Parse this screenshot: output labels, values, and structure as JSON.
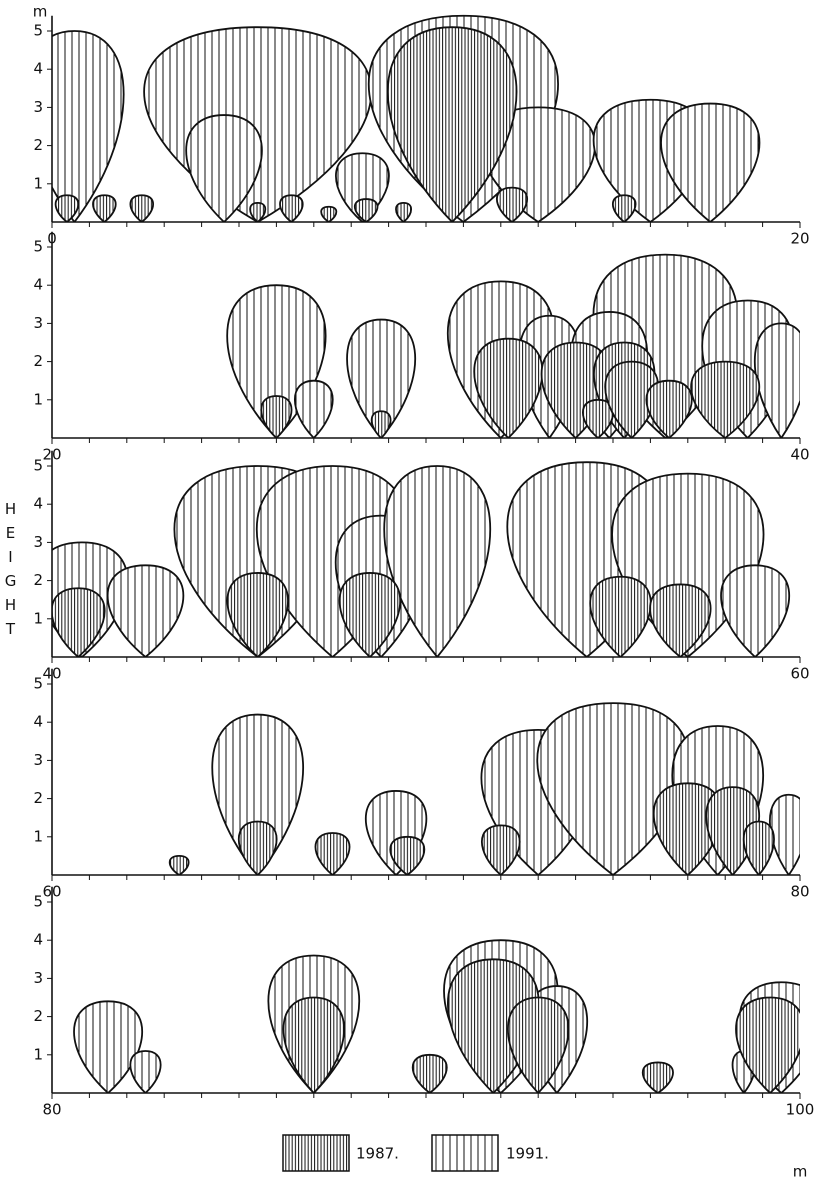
{
  "y_unit": "m",
  "x_unit": "m",
  "y_axis_title": "HEIGHT",
  "panels": [
    {
      "xlim": [
        0,
        20
      ],
      "yticks": [
        1,
        2,
        3,
        4,
        5
      ]
    },
    {
      "xlim": [
        20,
        40
      ],
      "yticks": [
        1,
        2,
        3,
        4,
        5
      ]
    },
    {
      "xlim": [
        40,
        60
      ],
      "yticks": [
        1,
        2,
        3,
        4,
        5
      ]
    },
    {
      "xlim": [
        60,
        80
      ],
      "yticks": [
        1,
        2,
        3,
        4,
        5
      ]
    },
    {
      "xlim": [
        80,
        100
      ],
      "yticks": [
        1,
        2,
        3,
        4,
        5
      ]
    }
  ],
  "legend": [
    "1987.",
    "1991."
  ]
}
